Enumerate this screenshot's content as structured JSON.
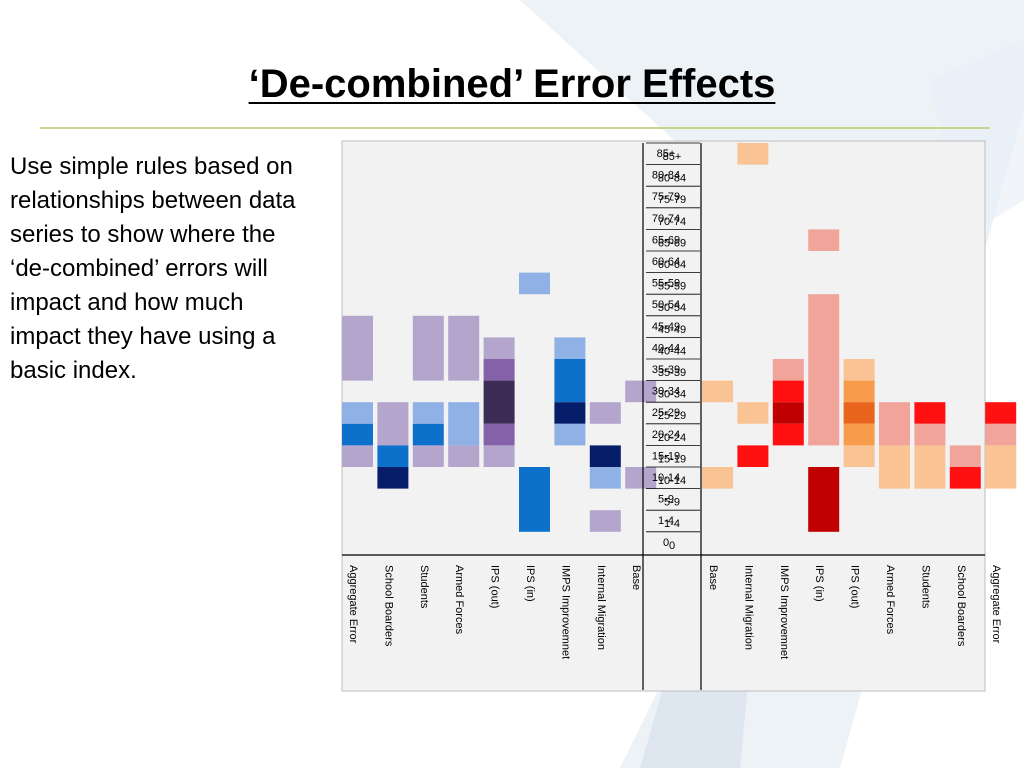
{
  "slide": {
    "title": "‘De-combined’ Error Effects",
    "body": "Use simple rules based on relationships between data series to show where the ‘de-combined’ errors will impact and how much impact they have using a basic index."
  },
  "colors": {
    "title_rule": "#c9d58c",
    "blue_scale": {
      "1": "#b3a5cc",
      "2": "#8fb1e6",
      "3": "#0d71cc",
      "4": "#8561aa",
      "5": "#061d6a",
      "6": "#3d2c55"
    },
    "red_scale": {
      "1": "#fac394",
      "2": "#f0a49a",
      "3": "#f69c4a",
      "4": "#e8641c",
      "5": "#ff1111",
      "6": "#c00000"
    }
  },
  "chart_data": {
    "type": "heatmap",
    "age_groups": [
      "85+",
      "80-84",
      "75-79",
      "70-74",
      "65-69",
      "60-64",
      "55-59",
      "50-54",
      "45-49",
      "40-44",
      "35-39",
      "30-34",
      "25-29",
      "20-24",
      "15-19",
      "10-14",
      "5-9",
      "1-4",
      "0"
    ],
    "left_panel": {
      "columns": [
        "Aggregate Error",
        "School Boarders",
        "Students",
        "Armed Forces",
        "IPS (out)",
        "IPS (in)",
        "IMPS Improvemnet",
        "Internal Migration",
        "Base"
      ],
      "cells": [
        {
          "col": "IPS (in)",
          "rows": [
            "55-59"
          ],
          "level": 2
        },
        {
          "col": "Aggregate Error",
          "rows": [
            "45-49",
            "40-44",
            "35-39"
          ],
          "level": 1
        },
        {
          "col": "Aggregate Error",
          "rows": [
            "25-29"
          ],
          "level": 2
        },
        {
          "col": "Aggregate Error",
          "rows": [
            "20-24"
          ],
          "level": 3
        },
        {
          "col": "Aggregate Error",
          "rows": [
            "15-19"
          ],
          "level": 1
        },
        {
          "col": "School Boarders",
          "rows": [
            "25-29",
            "20-24"
          ],
          "level": 1
        },
        {
          "col": "School Boarders",
          "rows": [
            "15-19"
          ],
          "level": 3
        },
        {
          "col": "School Boarders",
          "rows": [
            "10-14"
          ],
          "level": 5
        },
        {
          "col": "Students",
          "rows": [
            "45-49",
            "40-44",
            "35-39"
          ],
          "level": 1
        },
        {
          "col": "Students",
          "rows": [
            "25-29"
          ],
          "level": 2
        },
        {
          "col": "Students",
          "rows": [
            "20-24"
          ],
          "level": 3
        },
        {
          "col": "Students",
          "rows": [
            "15-19"
          ],
          "level": 1
        },
        {
          "col": "Armed Forces",
          "rows": [
            "45-49",
            "40-44",
            "35-39"
          ],
          "level": 1
        },
        {
          "col": "Armed Forces",
          "rows": [
            "25-29",
            "20-24"
          ],
          "level": 2
        },
        {
          "col": "Armed Forces",
          "rows": [
            "15-19"
          ],
          "level": 1
        },
        {
          "col": "IPS (out)",
          "rows": [
            "40-44"
          ],
          "level": 1
        },
        {
          "col": "IPS (out)",
          "rows": [
            "35-39"
          ],
          "level": 4
        },
        {
          "col": "IPS (out)",
          "rows": [
            "30-34",
            "25-29"
          ],
          "level": 6
        },
        {
          "col": "IPS (out)",
          "rows": [
            "20-24"
          ],
          "level": 4
        },
        {
          "col": "IPS (out)",
          "rows": [
            "15-19"
          ],
          "level": 1
        },
        {
          "col": "IPS (in)",
          "rows": [
            "10-14",
            "5-9",
            "1-4"
          ],
          "level": 3
        },
        {
          "col": "IMPS Improvemnet",
          "rows": [
            "40-44"
          ],
          "level": 2
        },
        {
          "col": "IMPS Improvemnet",
          "rows": [
            "35-39",
            "30-34"
          ],
          "level": 3
        },
        {
          "col": "IMPS Improvemnet",
          "rows": [
            "25-29"
          ],
          "level": 5
        },
        {
          "col": "IMPS Improvemnet",
          "rows": [
            "20-24"
          ],
          "level": 2
        },
        {
          "col": "Internal Migration",
          "rows": [
            "25-29"
          ],
          "level": 1
        },
        {
          "col": "Internal Migration",
          "rows": [
            "15-19"
          ],
          "level": 5
        },
        {
          "col": "Internal Migration",
          "rows": [
            "10-14"
          ],
          "level": 2
        },
        {
          "col": "Internal Migration",
          "rows": [
            "1-4"
          ],
          "level": 1
        },
        {
          "col": "Base",
          "rows": [
            "30-34"
          ],
          "level": 1
        },
        {
          "col": "Base",
          "rows": [
            "10-14"
          ],
          "level": 1
        }
      ]
    },
    "right_panel": {
      "columns": [
        "Base",
        "Internal Migration",
        "IMPS Improvemnet",
        "IPS (in)",
        "IPS (out)",
        "Armed Forces",
        "Students",
        "School Boarders",
        "Aggregate Error"
      ],
      "cells": [
        {
          "col": "Internal Migration",
          "rows": [
            "85+"
          ],
          "level": 1
        },
        {
          "col": "Base",
          "rows": [
            "30-34"
          ],
          "level": 1
        },
        {
          "col": "Base",
          "rows": [
            "10-14"
          ],
          "level": 1
        },
        {
          "col": "Internal Migration",
          "rows": [
            "25-29"
          ],
          "level": 1
        },
        {
          "col": "Internal Migration",
          "rows": [
            "15-19"
          ],
          "level": 5
        },
        {
          "col": "IMPS Improvemnet",
          "rows": [
            "35-39"
          ],
          "level": 2
        },
        {
          "col": "IMPS Improvemnet",
          "rows": [
            "30-34"
          ],
          "level": 5
        },
        {
          "col": "IMPS Improvemnet",
          "rows": [
            "25-29"
          ],
          "level": 6
        },
        {
          "col": "IMPS Improvemnet",
          "rows": [
            "20-24"
          ],
          "level": 5
        },
        {
          "col": "IPS (in)",
          "rows": [
            "65-69"
          ],
          "level": 2
        },
        {
          "col": "IPS (in)",
          "rows": [
            "50-54",
            "45-49",
            "40-44",
            "35-39",
            "30-34",
            "25-29",
            "20-24"
          ],
          "level": 2
        },
        {
          "col": "IPS (in)",
          "rows": [
            "10-14",
            "5-9",
            "1-4"
          ],
          "level": 6
        },
        {
          "col": "IPS (out)",
          "rows": [
            "35-39"
          ],
          "level": 1
        },
        {
          "col": "IPS (out)",
          "rows": [
            "30-34"
          ],
          "level": 3
        },
        {
          "col": "IPS (out)",
          "rows": [
            "25-29"
          ],
          "level": 4
        },
        {
          "col": "IPS (out)",
          "rows": [
            "20-24"
          ],
          "level": 3
        },
        {
          "col": "IPS (out)",
          "rows": [
            "15-19"
          ],
          "level": 1
        },
        {
          "col": "Armed Forces",
          "rows": [
            "25-29",
            "20-24"
          ],
          "level": 2
        },
        {
          "col": "Armed Forces",
          "rows": [
            "15-19",
            "10-14"
          ],
          "level": 1
        },
        {
          "col": "Students",
          "rows": [
            "25-29"
          ],
          "level": 5
        },
        {
          "col": "Students",
          "rows": [
            "20-24"
          ],
          "level": 2
        },
        {
          "col": "Students",
          "rows": [
            "15-19",
            "10-14"
          ],
          "level": 1
        },
        {
          "col": "School Boarders",
          "rows": [
            "15-19"
          ],
          "level": 2
        },
        {
          "col": "School Boarders",
          "rows": [
            "10-14"
          ],
          "level": 5
        },
        {
          "col": "Aggregate Error",
          "rows": [
            "25-29"
          ],
          "level": 5
        },
        {
          "col": "Aggregate Error",
          "rows": [
            "20-24"
          ],
          "level": 2
        },
        {
          "col": "Aggregate Error",
          "rows": [
            "15-19",
            "10-14"
          ],
          "level": 1
        }
      ]
    }
  }
}
